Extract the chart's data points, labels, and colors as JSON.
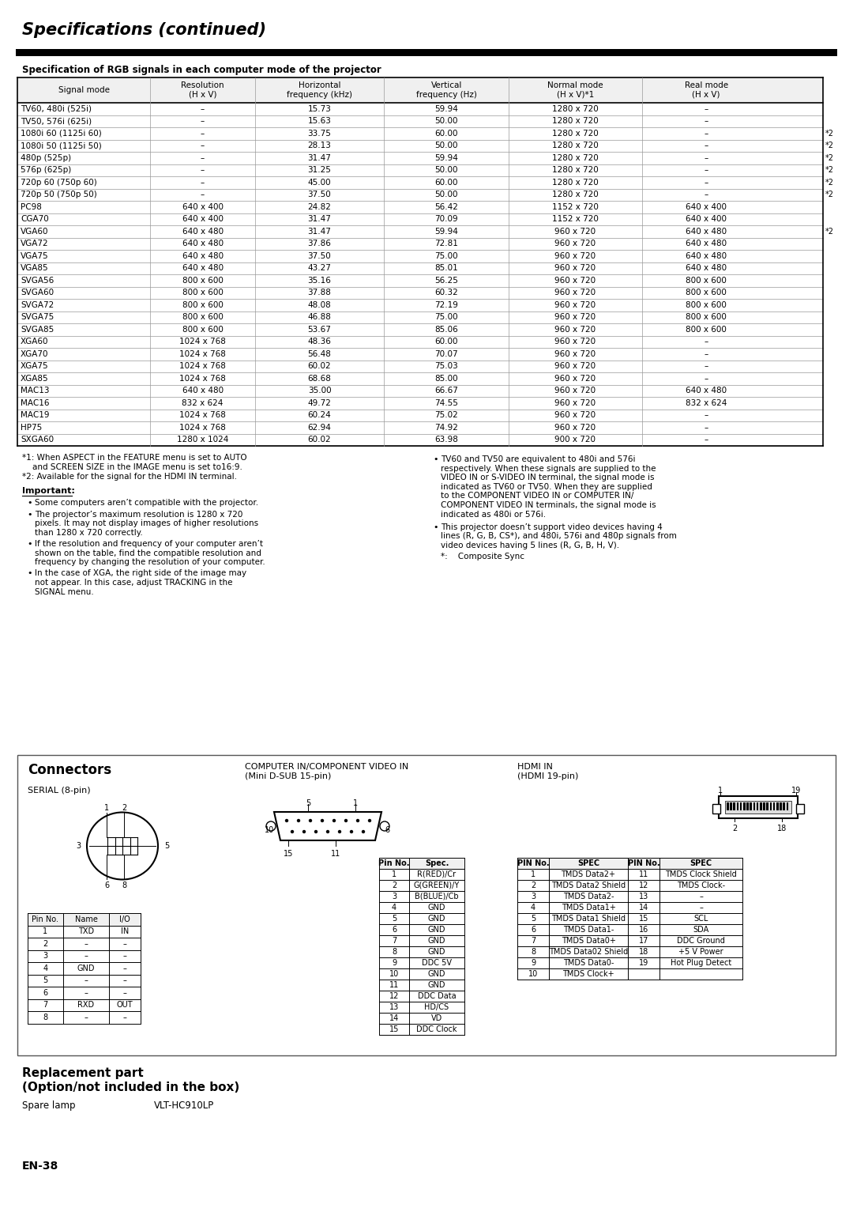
{
  "title": "Specifications (continued)",
  "section_title": "Specification of RGB signals in each computer mode of the projector",
  "table_headers": [
    "Signal mode",
    "Resolution\n(H x V)",
    "Horizontal\nfrequency (kHz)",
    "Vertical\nfrequency (Hz)",
    "Normal mode\n(H x V)*1",
    "Real mode\n(H x V)"
  ],
  "table_rows": [
    [
      "TV60, 480i (525i)",
      "–",
      "15.73",
      "59.94",
      "1280 x 720",
      "–",
      ""
    ],
    [
      "TV50, 576i (625i)",
      "–",
      "15.63",
      "50.00",
      "1280 x 720",
      "–",
      ""
    ],
    [
      "1080i 60 (1125i 60)",
      "–",
      "33.75",
      "60.00",
      "1280 x 720",
      "–",
      "*2"
    ],
    [
      "1080i 50 (1125i 50)",
      "–",
      "28.13",
      "50.00",
      "1280 x 720",
      "–",
      "*2"
    ],
    [
      "480p (525p)",
      "–",
      "31.47",
      "59.94",
      "1280 x 720",
      "–",
      "*2"
    ],
    [
      "576p (625p)",
      "–",
      "31.25",
      "50.00",
      "1280 x 720",
      "–",
      "*2"
    ],
    [
      "720p 60 (750p 60)",
      "–",
      "45.00",
      "60.00",
      "1280 x 720",
      "–",
      "*2"
    ],
    [
      "720p 50 (750p 50)",
      "–",
      "37.50",
      "50.00",
      "1280 x 720",
      "–",
      "*2"
    ],
    [
      "PC98",
      "640 x 400",
      "24.82",
      "56.42",
      "1152 x 720",
      "640 x 400",
      ""
    ],
    [
      "CGA70",
      "640 x 400",
      "31.47",
      "70.09",
      "1152 x 720",
      "640 x 400",
      ""
    ],
    [
      "VGA60",
      "640 x 480",
      "31.47",
      "59.94",
      "960 x 720",
      "640 x 480",
      "*2"
    ],
    [
      "VGA72",
      "640 x 480",
      "37.86",
      "72.81",
      "960 x 720",
      "640 x 480",
      ""
    ],
    [
      "VGA75",
      "640 x 480",
      "37.50",
      "75.00",
      "960 x 720",
      "640 x 480",
      ""
    ],
    [
      "VGA85",
      "640 x 480",
      "43.27",
      "85.01",
      "960 x 720",
      "640 x 480",
      ""
    ],
    [
      "SVGA56",
      "800 x 600",
      "35.16",
      "56.25",
      "960 x 720",
      "800 x 600",
      ""
    ],
    [
      "SVGA60",
      "800 x 600",
      "37.88",
      "60.32",
      "960 x 720",
      "800 x 600",
      ""
    ],
    [
      "SVGA72",
      "800 x 600",
      "48.08",
      "72.19",
      "960 x 720",
      "800 x 600",
      ""
    ],
    [
      "SVGA75",
      "800 x 600",
      "46.88",
      "75.00",
      "960 x 720",
      "800 x 600",
      ""
    ],
    [
      "SVGA85",
      "800 x 600",
      "53.67",
      "85.06",
      "960 x 720",
      "800 x 600",
      ""
    ],
    [
      "XGA60",
      "1024 x 768",
      "48.36",
      "60.00",
      "960 x 720",
      "–",
      ""
    ],
    [
      "XGA70",
      "1024 x 768",
      "56.48",
      "70.07",
      "960 x 720",
      "–",
      ""
    ],
    [
      "XGA75",
      "1024 x 768",
      "60.02",
      "75.03",
      "960 x 720",
      "–",
      ""
    ],
    [
      "XGA85",
      "1024 x 768",
      "68.68",
      "85.00",
      "960 x 720",
      "–",
      ""
    ],
    [
      "MAC13",
      "640 x 480",
      "35.00",
      "66.67",
      "960 x 720",
      "640 x 480",
      ""
    ],
    [
      "MAC16",
      "832 x 624",
      "49.72",
      "74.55",
      "960 x 720",
      "832 x 624",
      ""
    ],
    [
      "MAC19",
      "1024 x 768",
      "60.24",
      "75.02",
      "960 x 720",
      "–",
      ""
    ],
    [
      "HP75",
      "1024 x 768",
      "62.94",
      "74.92",
      "960 x 720",
      "–",
      ""
    ],
    [
      "SXGA60",
      "1280 x 1024",
      "60.02",
      "63.98",
      "900 x 720",
      "–",
      ""
    ]
  ],
  "footnote1a": "*1: When ASPECT in the FEATURE menu is set to AUTO",
  "footnote1b": "    and SCREEN SIZE in the IMAGE menu is set to16:9.",
  "footnote2": "*2: Available for the signal for the HDMI IN terminal.",
  "important_title": "Important:",
  "important_bullets": [
    "Some computers aren’t compatible with the projector.",
    "The projector’s maximum resolution is 1280 x 720\npixels. It may not display images of higher resolutions\nthan 1280 x 720 correctly.",
    "If the resolution and frequency of your computer aren’t\nshown on the table, find the compatible resolution and\nfrequency by changing the resolution of your computer.",
    "In the case of XGA, the right side of the image may\nnot appear. In this case, adjust TRACKING in the\nSIGNAL menu."
  ],
  "right_bullet1": "TV60 and TV50 are equivalent to 480i and 576i\nrespectively. When these signals are supplied to the\nVIDEO IN or S-VIDEO IN terminal, the signal mode is\nindicated as TV60 or TV50. When they are supplied\nto the COMPONENT VIDEO IN or COMPUTER IN/\nCOMPONENT VIDEO IN terminals, the signal mode is\nindicated as 480i or 576i.",
  "right_bullet2": "This projector doesn’t support video devices having 4\nlines (R, G, B, CS*), and 480i, 576i and 480p signals from\nvideo devices having 5 lines (R, G, B, H, V).",
  "right_bullet3": "*:    Composite Sync",
  "connectors_title": "Connectors",
  "serial_label": "SERIAL (8-pin)",
  "computer_in_label": "COMPUTER IN/COMPONENT VIDEO IN\n(Mini D-SUB 15-pin)",
  "hdmi_label": "HDMI IN\n(HDMI 19-pin)",
  "serial_pin_headers": [
    "Pin No.",
    "Name",
    "I/O"
  ],
  "serial_pins": [
    [
      "1",
      "TXD",
      "IN"
    ],
    [
      "2",
      "–",
      "–"
    ],
    [
      "3",
      "–",
      "–"
    ],
    [
      "4",
      "GND",
      "–"
    ],
    [
      "5",
      "–",
      "–"
    ],
    [
      "6",
      "–",
      "–"
    ],
    [
      "7",
      "RXD",
      "OUT"
    ],
    [
      "8",
      "–",
      "–"
    ]
  ],
  "comp_pin_headers": [
    "Pin No.",
    "Spec."
  ],
  "comp_pins": [
    [
      "1",
      "R(RED)/Cr"
    ],
    [
      "2",
      "G(GREEN)/Y"
    ],
    [
      "3",
      "B(BLUE)/Cb"
    ],
    [
      "4",
      "GND"
    ],
    [
      "5",
      "GND"
    ],
    [
      "6",
      "GND"
    ],
    [
      "7",
      "GND"
    ],
    [
      "8",
      "GND"
    ],
    [
      "9",
      "DDC 5V"
    ],
    [
      "10",
      "GND"
    ],
    [
      "11",
      "GND"
    ],
    [
      "12",
      "DDC Data"
    ],
    [
      "13",
      "HD/CS"
    ],
    [
      "14",
      "VD"
    ],
    [
      "15",
      "DDC Clock"
    ]
  ],
  "hdmi_table_headers": [
    "PIN No.",
    "SPEC",
    "PIN No.",
    "SPEC"
  ],
  "hdmi_pins": [
    [
      "1",
      "TMDS Data2+",
      "11",
      "TMDS Clock Shield"
    ],
    [
      "2",
      "TMDS Data2 Shield",
      "12",
      "TMDS Clock-"
    ],
    [
      "3",
      "TMDS Data2-",
      "13",
      "–"
    ],
    [
      "4",
      "TMDS Data1+",
      "14",
      "–"
    ],
    [
      "5",
      "TMDS Data1 Shield",
      "15",
      "SCL"
    ],
    [
      "6",
      "TMDS Data1-",
      "16",
      "SDA"
    ],
    [
      "7",
      "TMDS Data0+",
      "17",
      "DDC Ground"
    ],
    [
      "8",
      "TMDS Data02 Shield",
      "18",
      "+5 V Power"
    ],
    [
      "9",
      "TMDS Data0-",
      "19",
      "Hot Plug Detect"
    ],
    [
      "10",
      "TMDS Clock+",
      "",
      ""
    ]
  ],
  "replacement_title1": "Replacement part",
  "replacement_title2": "(Option/not included in the box)",
  "spare_lamp_label": "Spare lamp",
  "spare_lamp_value": "VLT-HC910LP",
  "page_number": "EN-38"
}
